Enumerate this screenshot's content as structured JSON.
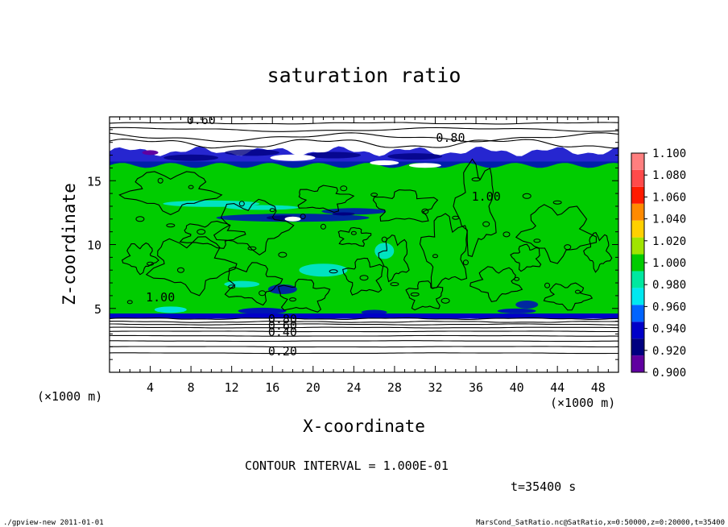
{
  "chart_data": {
    "type": "heatmap",
    "title": "saturation ratio",
    "xlabel": "X-coordinate",
    "ylabel": "Z-coordinate",
    "x_unit_label": "(×1000 m)",
    "y_unit_label": "(×1000 m)",
    "xlim": [
      0,
      50
    ],
    "ylim": [
      0,
      20
    ],
    "x_ticks": [
      "4",
      "8",
      "12",
      "16",
      "20",
      "24",
      "28",
      "32",
      "36",
      "40",
      "44",
      "48"
    ],
    "y_ticks": [
      "5",
      "10",
      "15"
    ],
    "x_tick_values": [
      4,
      8,
      12,
      16,
      20,
      24,
      28,
      32,
      36,
      40,
      44,
      48
    ],
    "y_tick_values": [
      5,
      10,
      15
    ],
    "contour_interval_text": "CONTOUR INTERVAL = 1.000E-01",
    "time_text": "t=35400 s",
    "contour_labels": [
      {
        "text": "0.60",
        "x": 9,
        "y": 19.5
      },
      {
        "text": "0.80",
        "x": 33.5,
        "y": 18.1
      },
      {
        "text": "0.80",
        "x": 17,
        "y": 3.9
      },
      {
        "text": "0.60",
        "x": 17,
        "y": 3.4
      },
      {
        "text": "0.40",
        "x": 17,
        "y": 2.9
      },
      {
        "text": "0.20",
        "x": 17,
        "y": 1.4
      },
      {
        "text": "1.00",
        "x": 5,
        "y": 5.6
      },
      {
        "text": "1.00",
        "x": 37,
        "y": 13.5
      }
    ],
    "colorbar": {
      "levels": [
        "1.100",
        "1.080",
        "1.060",
        "1.040",
        "1.020",
        "1.000",
        "0.980",
        "0.960",
        "0.940",
        "0.920",
        "0.900"
      ],
      "colors": [
        "#ff7f7f",
        "#ff4a4a",
        "#ff1a00",
        "#ff8a00",
        "#ffd000",
        "#a0e400",
        "#00cc00",
        "#00e8a0",
        "#00e8f0",
        "#0064ff",
        "#0000c8",
        "#000080",
        "#6000a0"
      ]
    },
    "bands": {
      "saturated_green_z": [
        4.4,
        16.5
      ],
      "blue_layer_top_z": [
        16.2,
        17.3
      ],
      "blue_layer_bottom_z": [
        4.2,
        4.6
      ]
    },
    "footer_left": "./gpview-new   2011-01-01",
    "footer_right": "MarsCond_SatRatio.nc@SatRatio,x=0:50000,z=0:20000,t=35400"
  }
}
